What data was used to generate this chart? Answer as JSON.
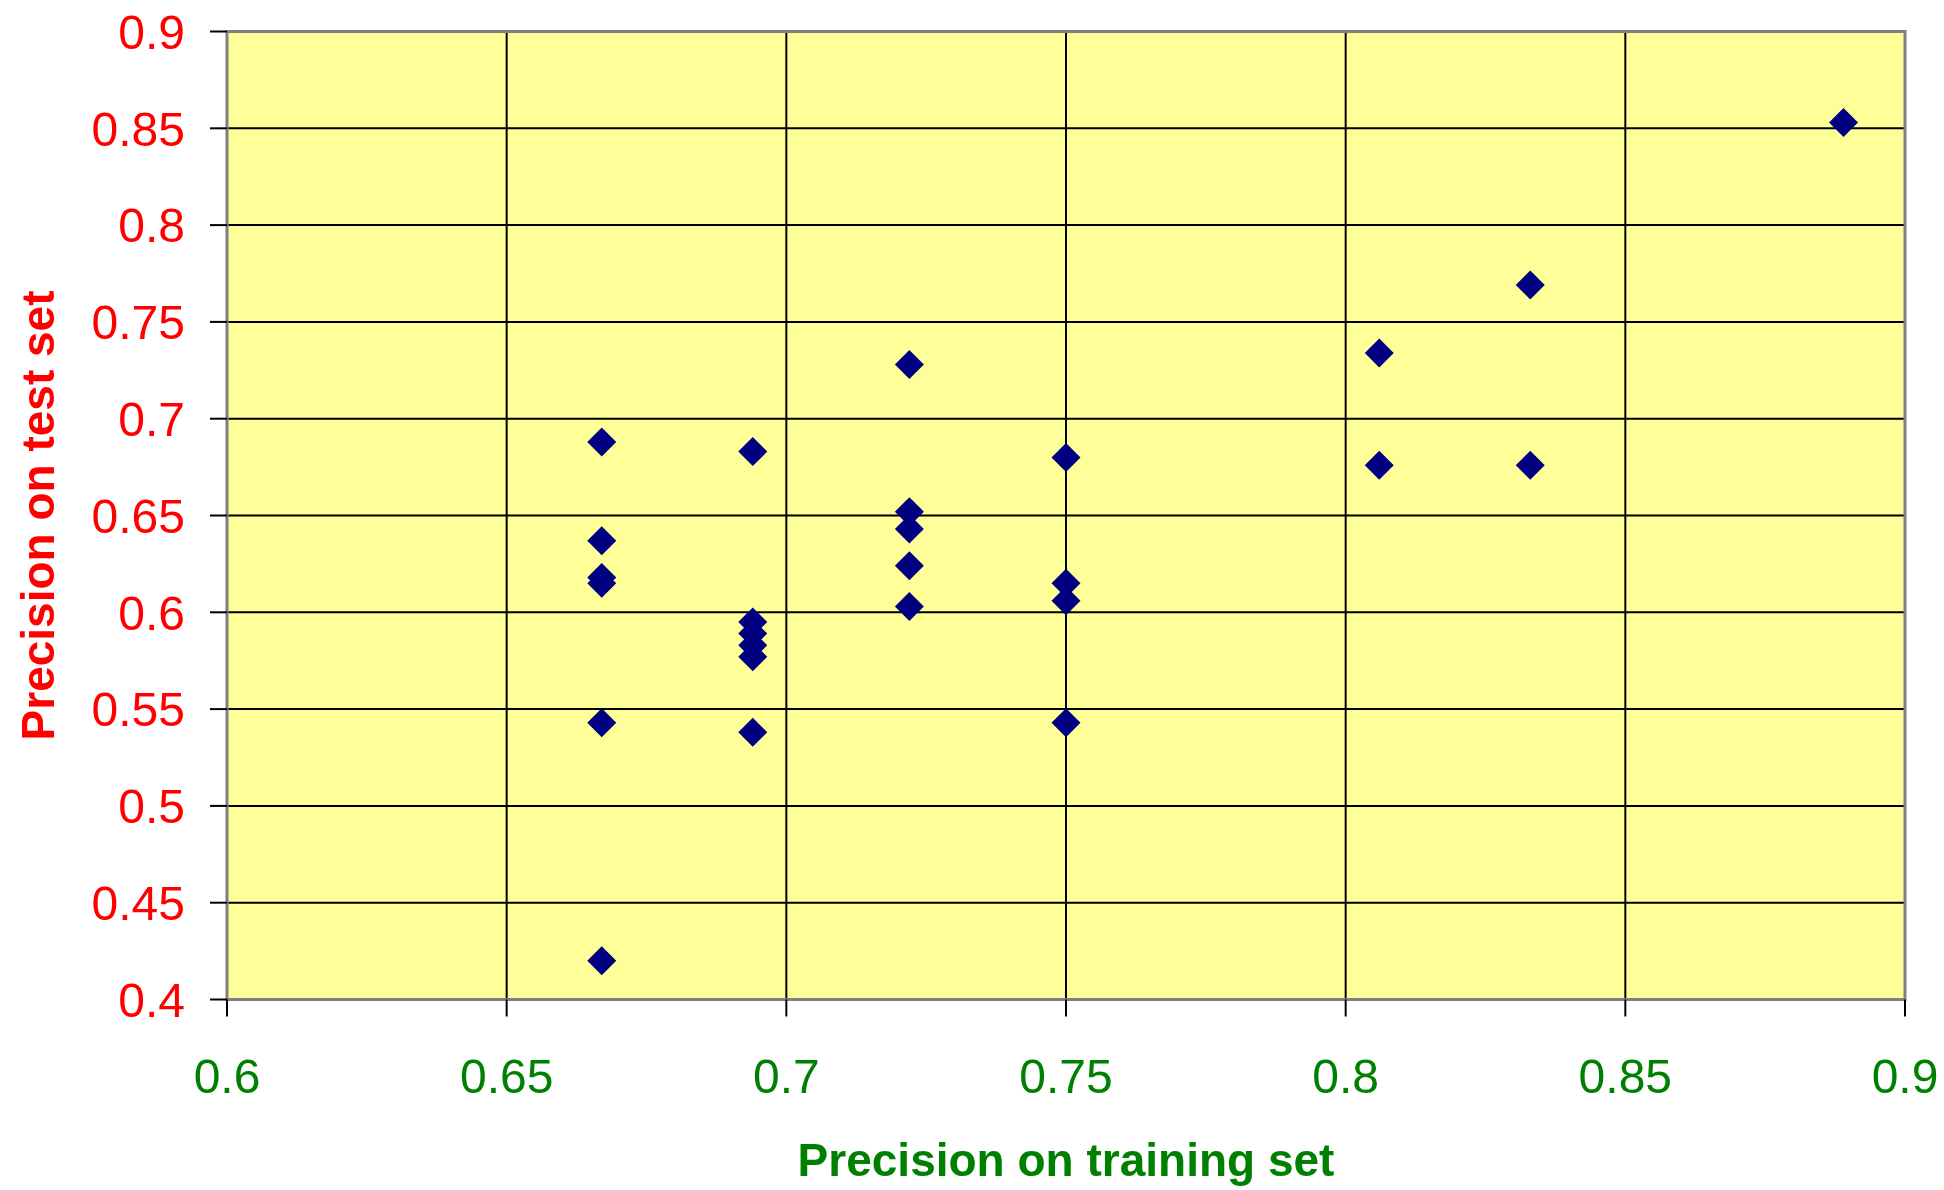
{
  "chart_data": {
    "type": "scatter",
    "xlabel": "Precision on training set",
    "ylabel": "Precision on test set",
    "x": [
      0.667,
      0.667,
      0.667,
      0.667,
      0.667,
      0.667,
      0.694,
      0.694,
      0.694,
      0.694,
      0.694,
      0.694,
      0.722,
      0.722,
      0.722,
      0.722,
      0.722,
      0.75,
      0.75,
      0.75,
      0.75,
      0.806,
      0.806,
      0.833,
      0.833,
      0.889
    ],
    "values": [
      0.688,
      0.637,
      0.618,
      0.615,
      0.543,
      0.42,
      0.683,
      0.595,
      0.589,
      0.583,
      0.577,
      0.538,
      0.728,
      0.652,
      0.643,
      0.624,
      0.603,
      0.68,
      0.615,
      0.606,
      0.543,
      0.734,
      0.676,
      0.769,
      0.676,
      0.853
    ],
    "color": "#000080",
    "marker": "diamond",
    "grid": true,
    "xlim": [
      0.6,
      0.9
    ],
    "xticks": [
      0.6,
      0.65,
      0.7,
      0.75,
      0.8,
      0.85,
      0.9
    ],
    "ylim": [
      0.4,
      0.9
    ],
    "yticks": [
      0.4,
      0.45,
      0.5,
      0.55,
      0.6,
      0.65,
      0.7,
      0.75,
      0.8,
      0.85,
      0.9
    ]
  }
}
